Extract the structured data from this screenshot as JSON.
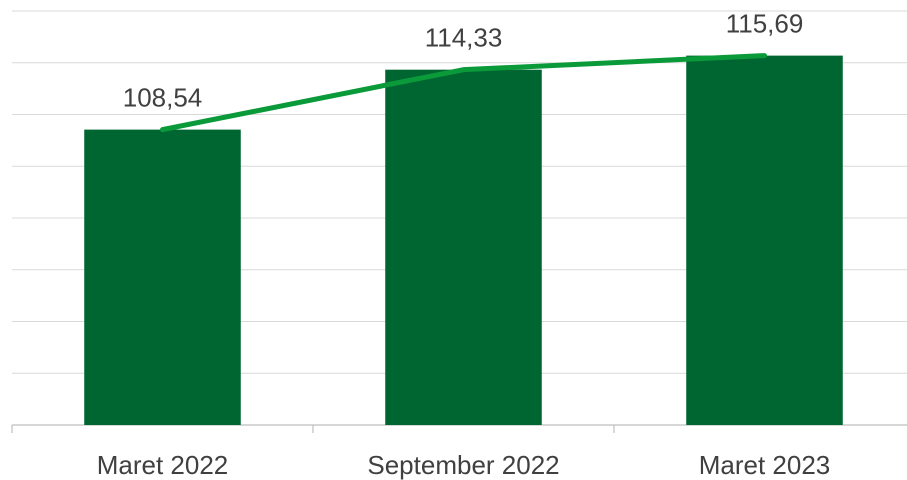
{
  "chart_data": {
    "type": "bar",
    "categories": [
      "Maret 2022",
      "September 2022",
      "Maret 2023"
    ],
    "values": [
      108.54,
      114.33,
      115.69
    ],
    "value_labels": [
      "108,54",
      "114,33",
      "115,69"
    ],
    "color": "#006631",
    "line_overlay": true,
    "line_color": "#0a9a3a",
    "ylim": [
      80,
      120
    ],
    "yticks": [
      80,
      85,
      90,
      95,
      100,
      105,
      110,
      115,
      120
    ],
    "grid": true
  }
}
